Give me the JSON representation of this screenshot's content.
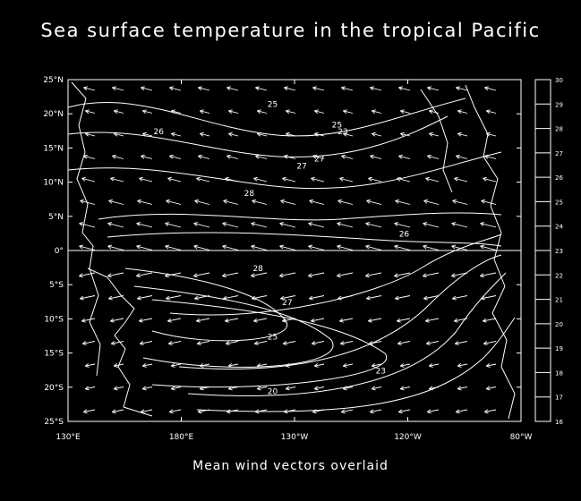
{
  "chart_data": {
    "type": "contour",
    "title": "Sea surface temperature in the tropical Pacific",
    "subtitle": "Mean wind vectors overlaid",
    "x_ticks": [
      "130°E",
      "180°E",
      "130°W",
      "120°W",
      "80°W"
    ],
    "y_ticks": [
      "25°N",
      "20°N",
      "15°N",
      "10°N",
      "5°N",
      "0°",
      "5°S",
      "10°S",
      "15°S",
      "20°S",
      "25°S"
    ],
    "colorbar_levels": [
      "30",
      "29",
      "28",
      "27",
      "26",
      "25",
      "24",
      "23",
      "22",
      "21",
      "20",
      "19",
      "18",
      "17",
      "16"
    ],
    "contour_labels": [
      {
        "text": "25",
        "lon": -160,
        "lat": 21
      },
      {
        "text": "25",
        "lon": -138,
        "lat": 18
      },
      {
        "text": "23",
        "lon": -136,
        "lat": 17
      },
      {
        "text": "26",
        "lon": 161,
        "lat": 17
      },
      {
        "text": "27",
        "lon": -144,
        "lat": 13
      },
      {
        "text": "27",
        "lon": -150,
        "lat": 12
      },
      {
        "text": "28",
        "lon": -168,
        "lat": 8
      },
      {
        "text": "26",
        "lon": -115,
        "lat": 2
      },
      {
        "text": "28",
        "lon": -165,
        "lat": -3
      },
      {
        "text": "27",
        "lon": -155,
        "lat": -8
      },
      {
        "text": "25",
        "lon": -160,
        "lat": -13
      },
      {
        "text": "23",
        "lon": -123,
        "lat": -18
      },
      {
        "text": "20",
        "lon": -160,
        "lat": -21
      }
    ],
    "ylim": [
      -25,
      25
    ],
    "grid": false,
    "colors": {
      "background": "#000000",
      "lines": "#ffffff"
    }
  }
}
